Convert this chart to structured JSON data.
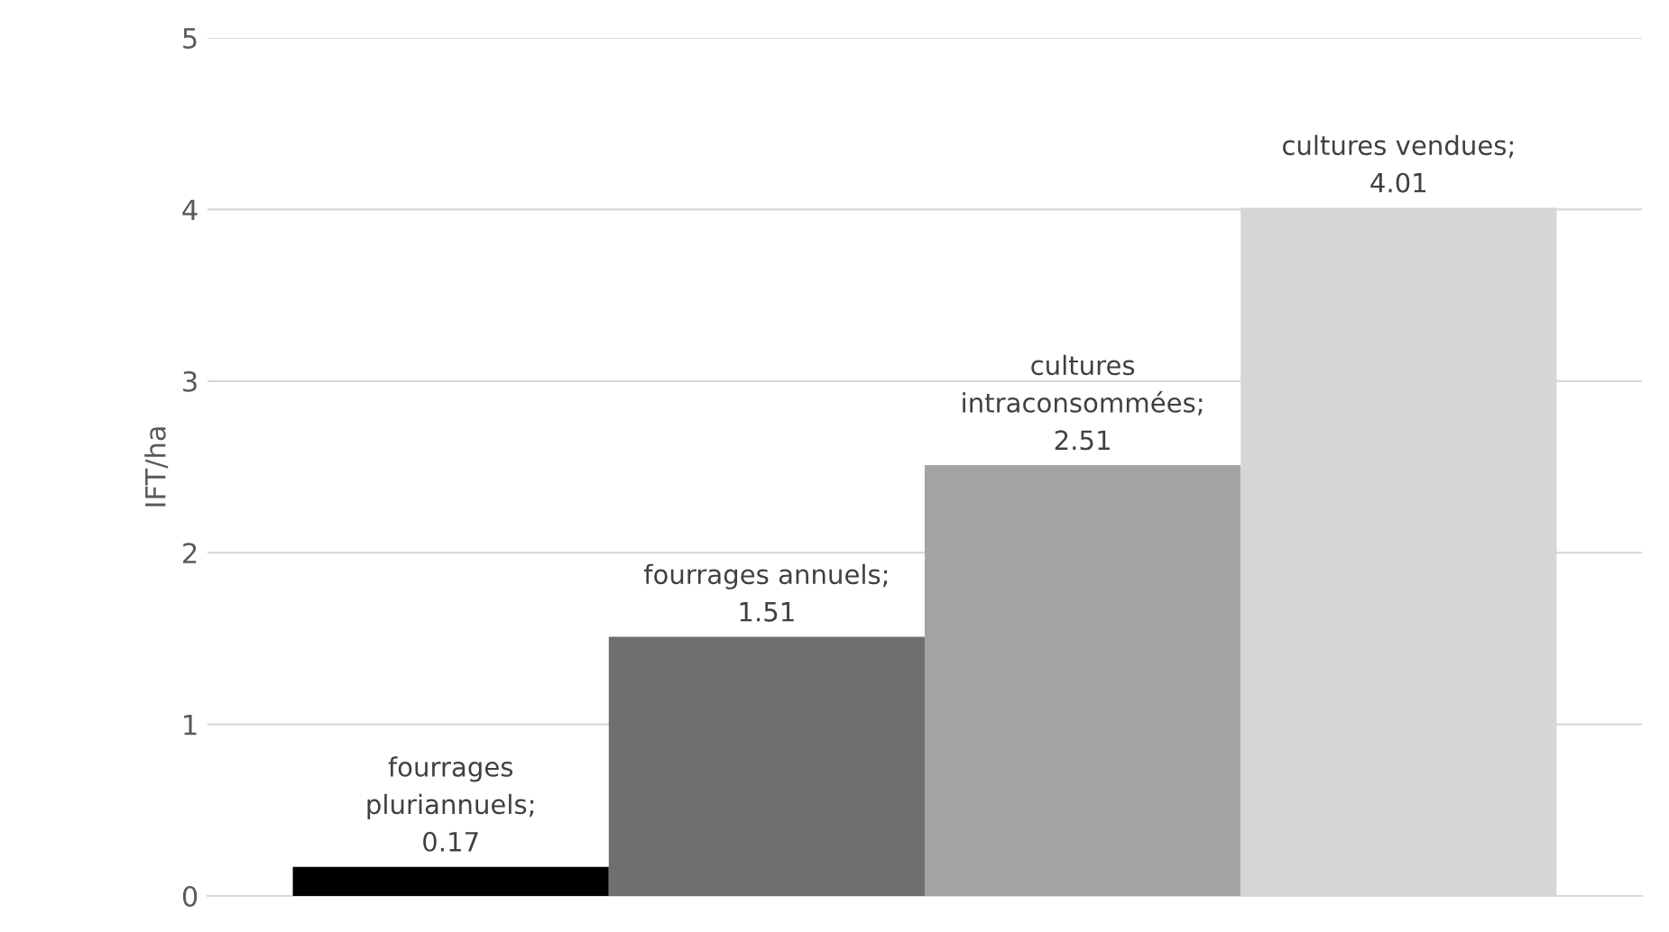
{
  "chart_data": {
    "type": "bar",
    "ylabel": "IFT/ha",
    "categories": [
      null,
      null,
      null,
      null
    ],
    "values": [
      0.17,
      1.51,
      2.51,
      4.01
    ],
    "colors": [
      "#000000",
      "#6f6f6f",
      "#a3a3a3",
      "#d6d6d6"
    ],
    "value_labels": [
      "fourrages\npluriannuels;\n0.17",
      "fourrages annuels;\n1.51",
      "cultures\nintraconsommées;\n2.51",
      "cultures vendues;\n4.01"
    ],
    "ylim": [
      0,
      5
    ],
    "yticks": [
      0,
      1,
      2,
      3,
      4,
      5
    ],
    "grid": "y",
    "legend": false
  }
}
